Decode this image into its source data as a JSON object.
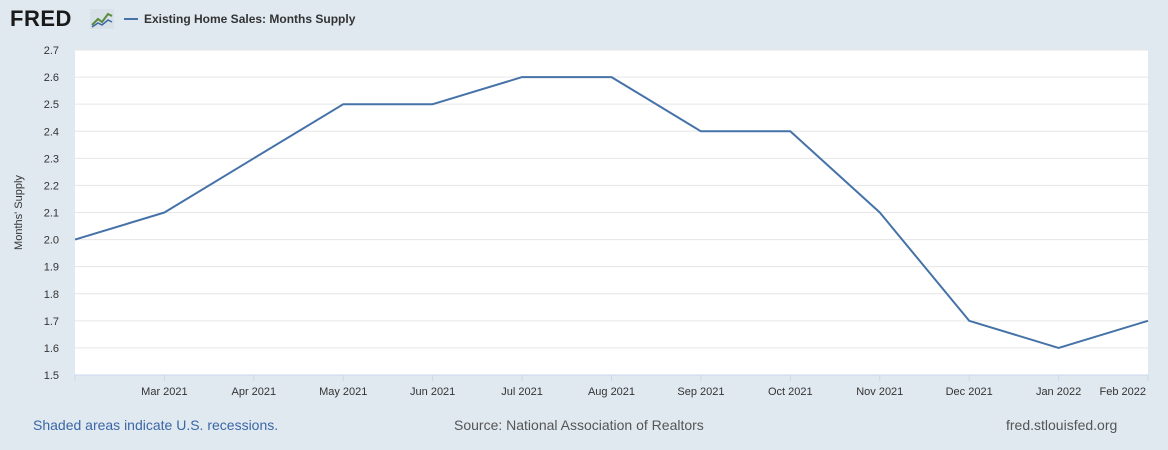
{
  "header": {
    "logo_text": "FRED",
    "logo_icon": "line-chart-icon",
    "series_title": "Existing Home Sales: Months Supply"
  },
  "colors": {
    "background": "#e1e9f0",
    "plot_background": "#ffffff",
    "series_line": "#4572a7",
    "gridline": "#e6e6e6"
  },
  "chart_data": {
    "type": "line",
    "ylabel": "Months' Supply",
    "xlabel": "",
    "ylim": [
      1.5,
      2.7
    ],
    "yticks": [
      1.5,
      1.6,
      1.7,
      1.8,
      1.9,
      2.0,
      2.1,
      2.2,
      2.3,
      2.4,
      2.5,
      2.6,
      2.7
    ],
    "ytick_labels": [
      "1.5",
      "1.6",
      "1.7",
      "1.8",
      "1.9",
      "2.0",
      "2.1",
      "2.2",
      "2.3",
      "2.4",
      "2.5",
      "2.6",
      "2.7"
    ],
    "grid": true,
    "x": [
      "2021-02",
      "2021-03",
      "2021-04",
      "2021-05",
      "2021-06",
      "2021-07",
      "2021-08",
      "2021-09",
      "2021-10",
      "2021-11",
      "2021-12",
      "2022-01",
      "2022-02"
    ],
    "xtick_labels": [
      "",
      "Mar 2021",
      "Apr 2021",
      "May 2021",
      "Jun 2021",
      "Jul 2021",
      "Aug 2021",
      "Sep 2021",
      "Oct 2021",
      "Nov 2021",
      "Dec 2021",
      "Jan 2022",
      "Feb 2022"
    ],
    "series": [
      {
        "name": "Existing Home Sales: Months Supply",
        "values": [
          2.0,
          2.1,
          2.3,
          2.5,
          2.5,
          2.6,
          2.6,
          2.4,
          2.4,
          2.1,
          1.7,
          1.6,
          1.7
        ]
      }
    ]
  },
  "footer": {
    "recession_note": "Shaded areas indicate U.S. recessions.",
    "source": "Source: National Association of Realtors",
    "site": "fred.stlouisfed.org"
  }
}
